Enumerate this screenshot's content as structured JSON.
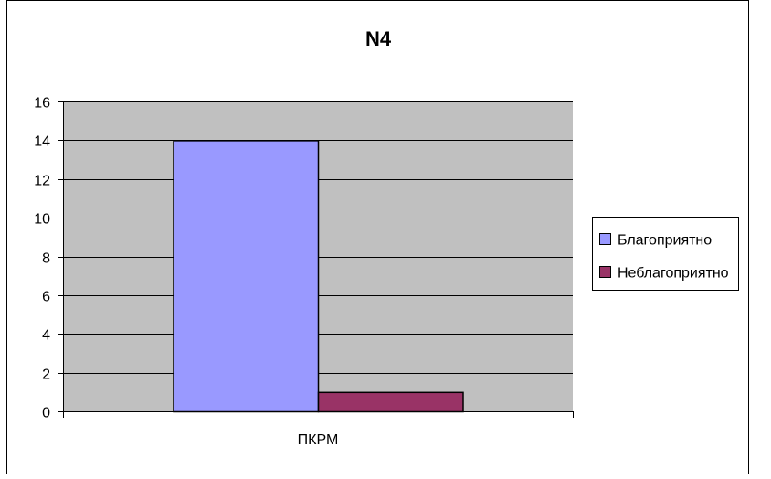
{
  "chart_data": {
    "type": "bar",
    "title": "N4",
    "categories": [
      "ПКРМ"
    ],
    "series": [
      {
        "name": "Благоприятно",
        "values": [
          14
        ],
        "color": "#9999FF"
      },
      {
        "name": "Неблагоприятно",
        "values": [
          1
        ],
        "color": "#993366"
      }
    ],
    "ylim": [
      0,
      16
    ],
    "yticks": [
      0,
      2,
      4,
      6,
      8,
      10,
      12,
      14,
      16
    ],
    "grid": true,
    "legend_position": "right",
    "plot_background": "#C0C0C0"
  }
}
